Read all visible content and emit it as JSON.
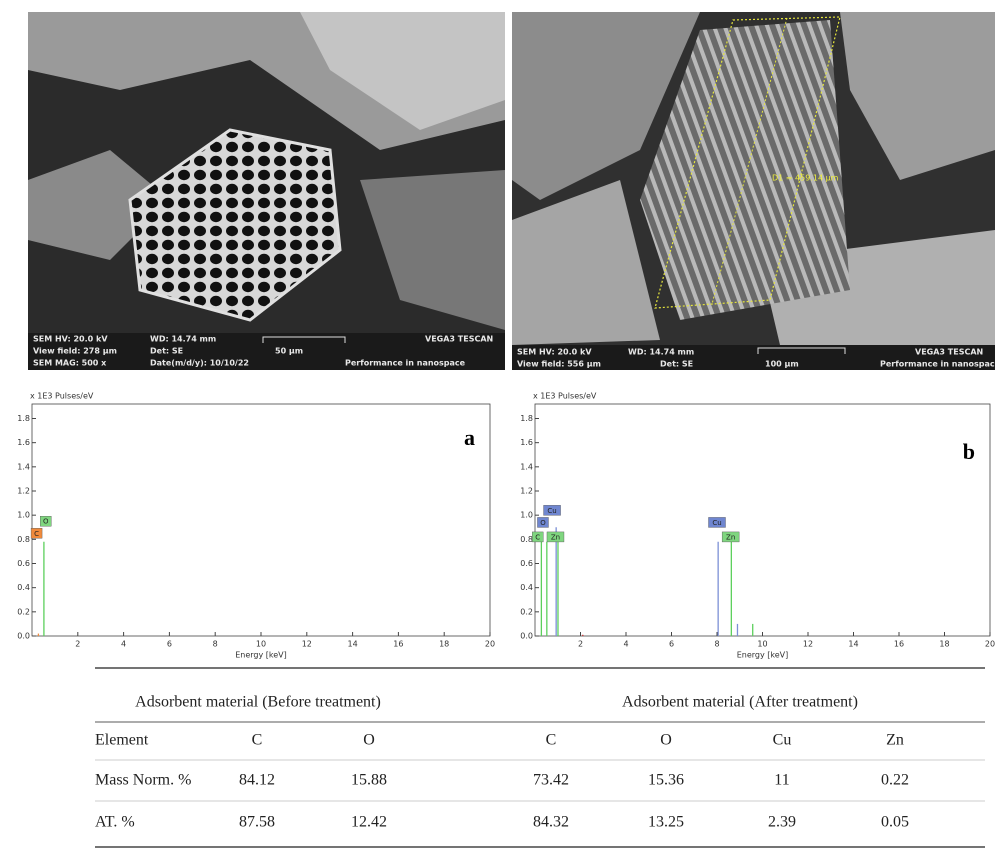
{
  "sem_images": [
    {
      "info": [
        "SEM HV: 20.0 kV",
        "WD: 14.74 mm",
        "VEGA3 TESCAN",
        "View field: 278 µm",
        "Det: SE",
        "50 µm",
        "SEM MAG: 500 x",
        "Date(m/d/y): 10/10/22",
        "Performance in nanospace"
      ]
    },
    {
      "info": [
        "SEM HV: 20.0 kV",
        "WD: 14.74 mm",
        "VEGA3 TESCAN",
        "View field: 556 µm",
        "Det: SE",
        "100 µm",
        "Performance in nanospace"
      ],
      "measurement": "D1 = 459.14 µm"
    }
  ],
  "chart_data": [
    {
      "type": "stem",
      "panel_label": "a",
      "y_label": "x 1E3 Pulses/eV",
      "x_label": "Energy [keV]",
      "xlim": [
        0,
        20
      ],
      "ylim": [
        0,
        1.92
      ],
      "xticks": [
        2,
        4,
        6,
        8,
        10,
        12,
        14,
        16,
        18,
        20
      ],
      "yticks": [
        {
          "value": 0,
          "label": "0.0"
        },
        0.2,
        0.4,
        0.6,
        0.8,
        {
          "value": 1,
          "label": "1.0"
        },
        1.2,
        1.4,
        1.6,
        1.8
      ],
      "series": [
        {
          "color": "#5ccf5c",
          "x": [
            0.52
          ],
          "values": [
            0.78
          ]
        },
        {
          "color": "#f08a3c",
          "x": [
            0.28
          ],
          "values": [
            0.02
          ]
        }
      ],
      "annotations": [
        {
          "text": "C",
          "x": 0.2,
          "y": 0.85,
          "color": "#f08a3c"
        },
        {
          "text": "O",
          "x": 0.6,
          "y": 0.95,
          "color": "#7fd67f"
        }
      ]
    },
    {
      "type": "stem",
      "panel_label": "b",
      "y_label": "x 1E3 Pulses/eV",
      "x_label": "Energy [keV]",
      "xlim": [
        0,
        20
      ],
      "ylim": [
        0,
        1.92
      ],
      "xticks": [
        2,
        4,
        6,
        8,
        10,
        12,
        14,
        16,
        18,
        20
      ],
      "yticks": [
        {
          "value": 0,
          "label": "0.0"
        },
        0.2,
        0.4,
        0.6,
        0.8,
        {
          "value": 1,
          "label": "1.0"
        },
        1.2,
        1.4,
        1.6,
        1.8
      ],
      "series": [
        {
          "color": "#5ccf5c",
          "x": [
            0.28,
            0.52,
            1.01,
            8.63,
            9.57
          ],
          "values": [
            0.78,
            0.78,
            0.78,
            0.78,
            0.1
          ]
        },
        {
          "color": "#7b8fd6",
          "x": [
            0.93,
            8.05,
            8.9
          ],
          "values": [
            0.9,
            0.78,
            0.1
          ]
        },
        {
          "color": "#d33333",
          "x": [
            2.1
          ],
          "values": [
            0.01
          ]
        }
      ],
      "annotations": [
        {
          "text": "Cu",
          "x": 0.75,
          "y": 1.04,
          "color": "#6f86d0"
        },
        {
          "text": "O",
          "x": 0.35,
          "y": 0.94,
          "color": "#6f86d0"
        },
        {
          "text": "C",
          "x": 0.12,
          "y": 0.82,
          "color": "#7fd67f"
        },
        {
          "text": "Zn",
          "x": 0.9,
          "y": 0.82,
          "color": "#7fd67f"
        },
        {
          "text": "Cu",
          "x": 8.0,
          "y": 0.94,
          "color": "#6f86d0"
        },
        {
          "text": "Zn",
          "x": 8.6,
          "y": 0.82,
          "color": "#7fd67f"
        }
      ]
    }
  ],
  "table": {
    "groups": [
      "Adsorbent material (Before treatment)",
      "Adsorbent material (After treatment)"
    ],
    "rows": [
      [
        "Element",
        "C",
        "O",
        "C",
        "O",
        "Cu",
        "Zn"
      ],
      [
        "Mass Norm. %",
        "84.12",
        "15.88",
        "73.42",
        "15.36",
        "11",
        "0.22"
      ],
      [
        "AT. %",
        "87.58",
        "12.42",
        "84.32",
        "13.25",
        "2.39",
        "0.05"
      ]
    ]
  }
}
